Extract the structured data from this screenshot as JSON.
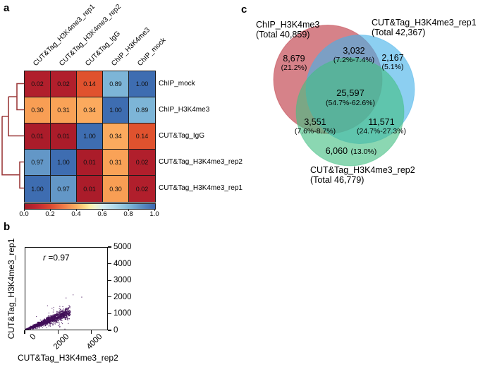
{
  "panels": {
    "a": "a",
    "b": "b",
    "c": "c"
  },
  "heatmap": {
    "col_labels": [
      "CUT&Tag_H3K4me3_rep1",
      "CUT&Tag_H3K4me3_rep2",
      "CUT&Tag_IgG",
      "ChIP_H3K4me3",
      "ChIP_mock"
    ],
    "row_labels": [
      "ChIP_mock",
      "ChIP_H3K4me3",
      "CUT&Tag_IgG",
      "CUT&Tag_H3K4me3_rep2",
      "CUT&Tag_H3K4me3_rep1"
    ],
    "values": [
      [
        0.02,
        0.02,
        0.14,
        0.89,
        1.0
      ],
      [
        0.3,
        0.31,
        0.34,
        1.0,
        0.89
      ],
      [
        0.01,
        0.01,
        1.0,
        0.34,
        0.14
      ],
      [
        0.97,
        1.0,
        0.01,
        0.31,
        0.02
      ],
      [
        1.0,
        0.97,
        0.01,
        0.3,
        0.02
      ]
    ],
    "cell_colors": {
      "0.01": "#ab1c2a",
      "0.02": "#b11f2c",
      "0.14": "#e0522e",
      "0.30": "#f89e54",
      "0.31": "#f9a257",
      "0.34": "#fbaa5e",
      "0.89": "#7db5d7",
      "0.97": "#6397c7",
      "1.00": "#3e6db1"
    },
    "text_color": "#111111",
    "dendrogram_color": "#9c3b3c",
    "colorbar": {
      "ticks": [
        "0.0",
        "0.2",
        "0.4",
        "0.6",
        "0.8",
        "1.0"
      ],
      "stops": [
        [
          0,
          "#a31c29"
        ],
        [
          0.1,
          "#c32833"
        ],
        [
          0.2,
          "#dd4932"
        ],
        [
          0.3,
          "#f07b48"
        ],
        [
          0.4,
          "#fbb265"
        ],
        [
          0.46,
          "#fdd985"
        ],
        [
          0.5,
          "#fdf0a9"
        ],
        [
          0.54,
          "#eff5cd"
        ],
        [
          0.6,
          "#d7ecf0"
        ],
        [
          0.7,
          "#acd6e8"
        ],
        [
          0.8,
          "#7fb8d8"
        ],
        [
          0.9,
          "#5a8dc1"
        ],
        [
          1,
          "#3c66ae"
        ]
      ]
    }
  },
  "scatter": {
    "annotation_var": "r",
    "annotation_val": "=0.97",
    "x_label": "CUT&Tag_H3K4me3_rep2",
    "y_label": "CUT&Tag_H3K4me3_rep1",
    "x_ticks": [
      0,
      2000,
      4000
    ],
    "y_ticks": [
      0,
      1000,
      2000,
      3000,
      4000,
      5000
    ],
    "xlim": [
      0,
      5000
    ],
    "ylim": [
      0,
      5000
    ],
    "point_color": "#400d58",
    "distribution": {
      "seed": 20,
      "core": {
        "n": 2600,
        "x_scale": 2750,
        "x_pow": 2.4,
        "slope": 0.4,
        "slope_sd": 0.065,
        "y_abs": 14
      },
      "band": {
        "n": 170,
        "x_min": 250,
        "x_span": 2250,
        "slope": 0.4,
        "slope_sd": 0.16
      },
      "sparse": {
        "n": 45,
        "x_min": 700,
        "x_span": 2400,
        "slope": 0.42,
        "slope_sd": 0.28
      },
      "outliers": [
        [
          3430,
          1990
        ]
      ],
      "point_size": 1.2
    }
  },
  "venn": {
    "colors": {
      "chip": "#bd3540",
      "rep1": "#45b2e8",
      "rep2": "#43bf83"
    },
    "set_titles": [
      {
        "name": "ChIP_H3K4me3",
        "total": "(Total 40,859)"
      },
      {
        "name": "CUT&Tag_H3K4me3_rep1",
        "total": "(Total 42,367)"
      },
      {
        "name": "CUT&Tag_H3K4me3_rep2",
        "total": "(Total 46,779)"
      }
    ],
    "regions": {
      "chip_only": {
        "value": "8,679",
        "pct": "(21.2%)"
      },
      "chip_rep1": {
        "value": "3,032",
        "pct": "(7.2%-7.4%)"
      },
      "rep1_only": {
        "value": "2,167",
        "pct": "(5.1%)"
      },
      "center": {
        "value": "25,597",
        "pct": "(54.7%-62.6%)"
      },
      "chip_rep2": {
        "value": "3,551",
        "pct": "(7.6%-8.7%)"
      },
      "rep1_rep2": {
        "value": "11,571",
        "pct": "(24.7%-27.3%)"
      },
      "rep2_only": {
        "value": "6,060",
        "pct": "(13.0%)"
      }
    }
  },
  "chart_data": [
    {
      "type": "heatmap",
      "panel": "a",
      "title": "Correlation heatmap with row dendrogram",
      "rows": [
        "ChIP_mock",
        "ChIP_H3K4me3",
        "CUT&Tag_IgG",
        "CUT&Tag_H3K4me3_rep2",
        "CUT&Tag_H3K4me3_rep1"
      ],
      "columns": [
        "CUT&Tag_H3K4me3_rep1",
        "CUT&Tag_H3K4me3_rep2",
        "CUT&Tag_IgG",
        "ChIP_H3K4me3",
        "ChIP_mock"
      ],
      "values": [
        [
          0.02,
          0.02,
          0.14,
          0.89,
          1.0
        ],
        [
          0.3,
          0.31,
          0.34,
          1.0,
          0.89
        ],
        [
          0.01,
          0.01,
          1.0,
          0.34,
          0.14
        ],
        [
          0.97,
          1.0,
          0.01,
          0.31,
          0.02
        ],
        [
          1.0,
          0.97,
          0.01,
          0.3,
          0.02
        ]
      ],
      "colormap": "RdYlBu",
      "vmin": 0.0,
      "vmax": 1.0,
      "colorbar_ticks": [
        0.0,
        0.2,
        0.4,
        0.6,
        0.8,
        1.0
      ],
      "dendrogram_clusters": [
        [
          "ChIP_mock",
          "ChIP_H3K4me3"
        ],
        [
          "CUT&Tag_H3K4me3_rep2",
          "CUT&Tag_H3K4me3_rep1"
        ]
      ]
    },
    {
      "type": "scatter",
      "panel": "b",
      "xlabel": "CUT&Tag_H3K4me3_rep2",
      "ylabel": "CUT&Tag_H3K4me3_rep1",
      "xlim": [
        0,
        5000
      ],
      "ylim": [
        0,
        5000
      ],
      "x_ticks": [
        0,
        2000,
        4000
      ],
      "y_ticks": [
        0,
        1000,
        2000,
        3000,
        4000,
        5000
      ],
      "annotation": "r =0.97",
      "description": "Dense dark-purple point cloud hugging y≈0.4x from the origin out to ~(2700,1100), sparse points to ~(3400,2000), Pearson r = 0.97",
      "legend": false,
      "grid": false
    },
    {
      "type": "venn",
      "panel": "c",
      "sets": [
        {
          "label": "ChIP_H3K4me3",
          "total": 40859
        },
        {
          "label": "CUT&Tag_H3K4me3_rep1",
          "total": 42367
        },
        {
          "label": "CUT&Tag_H3K4me3_rep2",
          "total": 46779
        }
      ],
      "regions": {
        "ChIP_only": {
          "count": 8679,
          "pct": "21.2%"
        },
        "rep1_only": {
          "count": 2167,
          "pct": "5.1%"
        },
        "rep2_only": {
          "count": 6060,
          "pct": "13.0%"
        },
        "ChIP_and_rep1": {
          "count": 3032,
          "pct": "7.2%-7.4%"
        },
        "ChIP_and_rep2": {
          "count": 3551,
          "pct": "7.6%-8.7%"
        },
        "rep1_and_rep2": {
          "count": 11571,
          "pct": "24.7%-27.3%"
        },
        "all_three": {
          "count": 25597,
          "pct": "54.7%-62.6%"
        }
      }
    }
  ]
}
